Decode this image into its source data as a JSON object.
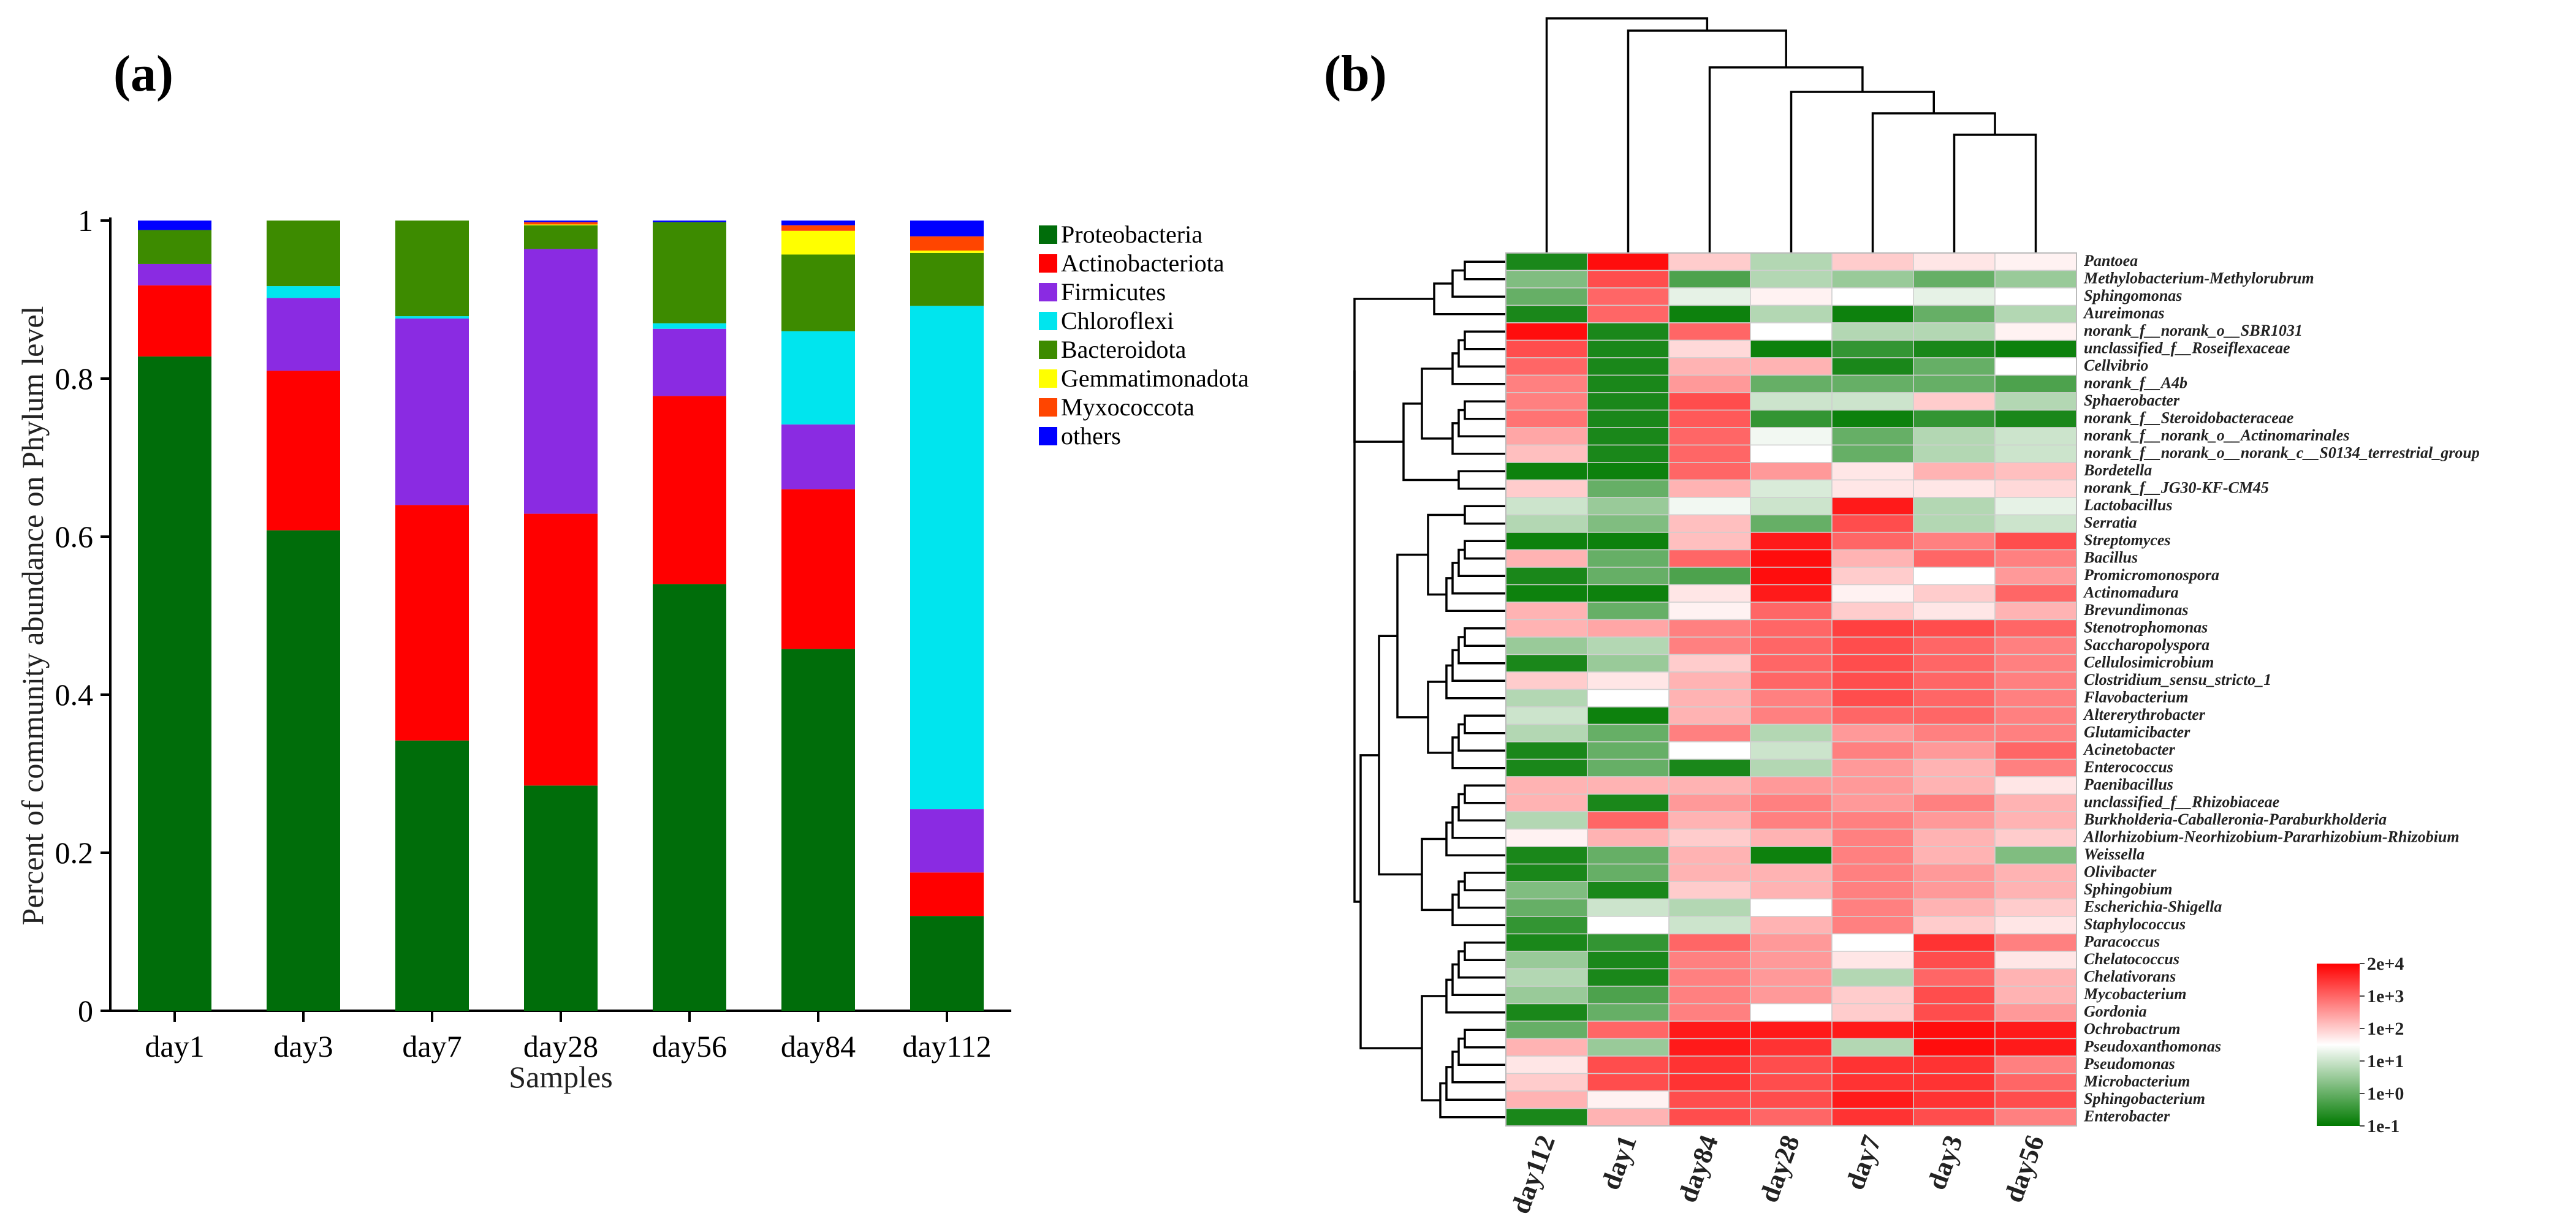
{
  "panel_labels": {
    "a": "(a)",
    "b": "(b)"
  },
  "colors": {
    "Proteobacteria": "#006d0a",
    "Actinobacteriota": "#ff0000",
    "Firmicutes": "#8a2be2",
    "Chloroflexi": "#00e5ee",
    "Bacteroidota": "#3d8b00",
    "Gemmatimonadota": "#ffff00",
    "Myxococcota": "#ff4500",
    "others": "#0000ff",
    "heat_low": "#007a00",
    "heat_mid": "#ffffff",
    "heat_high": "#ff0000"
  },
  "chart_data": [
    {
      "type": "bar",
      "stacked": true,
      "xlabel": "Samples",
      "ylabel": "Percent of community abundance on Phylum level",
      "ylim": [
        0,
        1
      ],
      "yticks": [
        "0",
        "0.2",
        "0.4",
        "0.6",
        "0.8",
        "1"
      ],
      "ytick_values": [
        0,
        0.2,
        0.4,
        0.6,
        0.8,
        1
      ],
      "categories": [
        "day1",
        "day3",
        "day7",
        "day28",
        "day56",
        "day84",
        "day112"
      ],
      "legend_position": "right",
      "series": [
        {
          "name": "Proteobacteria",
          "values": [
            0.828,
            0.608,
            0.342,
            0.285,
            0.54,
            0.458,
            0.12
          ]
        },
        {
          "name": "Actinobacteriota",
          "values": [
            0.09,
            0.202,
            0.298,
            0.344,
            0.238,
            0.202,
            0.055
          ]
        },
        {
          "name": "Firmicutes",
          "values": [
            0.027,
            0.092,
            0.236,
            0.335,
            0.085,
            0.082,
            0.08
          ]
        },
        {
          "name": "Chloroflexi",
          "values": [
            0.0,
            0.015,
            0.003,
            0.0,
            0.007,
            0.118,
            0.637
          ]
        },
        {
          "name": "Bacteroidota",
          "values": [
            0.043,
            0.083,
            0.121,
            0.03,
            0.128,
            0.097,
            0.067
          ]
        },
        {
          "name": "Gemmatimonadota",
          "values": [
            0.0,
            0.0,
            0.0,
            0.001,
            0.0,
            0.03,
            0.003
          ]
        },
        {
          "name": "Myxococcota",
          "values": [
            0.0,
            0.0,
            0.0,
            0.003,
            0.0,
            0.007,
            0.018
          ]
        },
        {
          "name": "others",
          "values": [
            0.012,
            0.0,
            0.0,
            0.002,
            0.002,
            0.006,
            0.02
          ]
        }
      ]
    },
    {
      "type": "heatmap",
      "columns": [
        "day112",
        "day1",
        "day84",
        "day28",
        "day7",
        "day3",
        "day56"
      ],
      "rows": [
        "Pantoea",
        "Methylobacterium-Methylorubrum",
        "Sphingomonas",
        "Aureimonas",
        "norank_f__norank_o__SBR1031",
        "unclassified_f__Roseiflexaceae",
        "Cellvibrio",
        "norank_f__A4b",
        "Sphaerobacter",
        "norank_f__Steroidobacteraceae",
        "norank_f__norank_o__Actinomarinales",
        "norank_f__norank_o__norank_c__S0134_terrestrial_group",
        "Bordetella",
        "norank_f__JG30-KF-CM45",
        "Lactobacillus",
        "Serratia",
        "Streptomyces",
        "Bacillus",
        "Promicromonospora",
        "Actinomadura",
        "Brevundimonas",
        "Stenotrophomonas",
        "Saccharopolyspora",
        "Cellulosimicrobium",
        "Clostridium_sensu_stricto_1",
        "Flavobacterium",
        "Altererythrobacter",
        "Glutamicibacter",
        "Acinetobacter",
        "Enterococcus",
        "Paenibacillus",
        "unclassified_f__Rhizobiaceae",
        "Burkholderia-Caballeronia-Paraburkholderia",
        "Allorhizobium-Neorhizobium-Pararhizobium-Rhizobium",
        "Weissella",
        "Olivibacter",
        "Sphingobium",
        "Escherichia-Shigella",
        "Staphylococcus",
        "Paracoccus",
        "Chelatococcus",
        "Chelativorans",
        "Mycobacterium",
        "Gordonia",
        "Ochrobactrum",
        "Pseudoxanthomonas",
        "Pseudomonas",
        "Microbacterium",
        "Sphingobacterium",
        "Enterobacter"
      ],
      "values": [
        [
          -0.9,
          0.95,
          0.2,
          -0.3,
          0.2,
          0.1,
          0.05
        ],
        [
          -0.5,
          0.7,
          -0.7,
          -0.3,
          -0.4,
          -0.6,
          -0.4
        ],
        [
          -0.6,
          0.6,
          -0.1,
          0.05,
          0.0,
          -0.1,
          0.0
        ],
        [
          -0.9,
          0.6,
          -0.95,
          -0.3,
          -0.95,
          -0.6,
          -0.3
        ],
        [
          0.95,
          -0.9,
          0.6,
          0.0,
          -0.3,
          -0.3,
          0.05
        ],
        [
          0.7,
          -0.9,
          0.15,
          -0.95,
          -0.8,
          -0.9,
          -0.95
        ],
        [
          0.6,
          -0.9,
          0.3,
          0.3,
          -0.9,
          -0.6,
          0.0
        ],
        [
          0.5,
          -0.9,
          0.4,
          -0.6,
          -0.6,
          -0.6,
          -0.7
        ],
        [
          0.5,
          -0.9,
          0.7,
          -0.2,
          -0.2,
          0.2,
          -0.3
        ],
        [
          0.55,
          -0.9,
          0.65,
          -0.8,
          -0.95,
          -0.8,
          -0.9
        ],
        [
          0.35,
          -0.9,
          0.6,
          -0.05,
          -0.6,
          -0.3,
          -0.2
        ],
        [
          0.25,
          -0.9,
          0.6,
          0.0,
          -0.6,
          -0.3,
          -0.2
        ],
        [
          -0.95,
          -0.95,
          0.6,
          0.4,
          0.1,
          0.3,
          0.25
        ],
        [
          0.2,
          -0.6,
          0.3,
          -0.15,
          0.1,
          0.1,
          0.15
        ],
        [
          -0.2,
          -0.4,
          -0.05,
          -0.2,
          0.9,
          -0.3,
          -0.1
        ],
        [
          -0.3,
          -0.5,
          0.25,
          -0.6,
          0.7,
          -0.3,
          -0.2
        ],
        [
          -0.95,
          -0.95,
          0.25,
          0.9,
          0.6,
          0.5,
          0.7
        ],
        [
          0.3,
          -0.6,
          0.6,
          0.95,
          0.3,
          0.6,
          0.5
        ],
        [
          -0.9,
          -0.6,
          -0.7,
          0.95,
          0.2,
          0.0,
          0.4
        ],
        [
          -0.95,
          -0.95,
          0.1,
          0.9,
          0.05,
          0.2,
          0.6
        ],
        [
          0.3,
          -0.6,
          0.05,
          0.6,
          0.2,
          0.1,
          0.3
        ],
        [
          0.3,
          0.35,
          0.5,
          0.6,
          0.75,
          0.7,
          0.6
        ],
        [
          -0.4,
          -0.3,
          0.5,
          0.6,
          0.7,
          0.6,
          0.5
        ],
        [
          -0.9,
          -0.4,
          0.2,
          0.6,
          0.7,
          0.6,
          0.5
        ],
        [
          0.2,
          0.1,
          0.3,
          0.6,
          0.7,
          0.6,
          0.5
        ],
        [
          -0.3,
          0.0,
          0.3,
          0.5,
          0.7,
          0.6,
          0.5
        ],
        [
          -0.2,
          -0.95,
          0.3,
          0.5,
          0.6,
          0.6,
          0.5
        ],
        [
          -0.3,
          -0.6,
          0.5,
          -0.3,
          0.4,
          0.5,
          0.5
        ],
        [
          -0.9,
          -0.6,
          0.0,
          -0.2,
          0.5,
          0.4,
          0.6
        ],
        [
          -0.9,
          -0.6,
          -0.9,
          -0.3,
          0.4,
          0.3,
          0.5
        ],
        [
          0.3,
          0.3,
          0.3,
          0.4,
          0.4,
          0.3,
          0.1
        ],
        [
          0.3,
          -0.9,
          0.4,
          0.5,
          0.4,
          0.5,
          0.3
        ],
        [
          -0.3,
          0.6,
          0.3,
          0.5,
          0.5,
          0.4,
          0.3
        ],
        [
          0.05,
          0.3,
          0.2,
          0.3,
          0.5,
          0.3,
          0.2
        ],
        [
          -0.9,
          -0.6,
          0.3,
          -0.95,
          0.5,
          0.3,
          -0.5
        ],
        [
          -0.9,
          -0.6,
          0.3,
          0.3,
          0.5,
          0.4,
          0.3
        ],
        [
          -0.5,
          -0.9,
          0.2,
          0.3,
          0.5,
          0.4,
          0.3
        ],
        [
          -0.6,
          -0.2,
          -0.3,
          0.0,
          0.5,
          0.3,
          0.2
        ],
        [
          -0.8,
          0.0,
          -0.2,
          0.3,
          0.5,
          0.2,
          0.1
        ],
        [
          -0.9,
          -0.8,
          0.6,
          0.4,
          0.0,
          0.8,
          0.5
        ],
        [
          -0.4,
          -0.9,
          0.5,
          0.4,
          0.1,
          0.7,
          0.1
        ],
        [
          -0.3,
          -0.9,
          0.5,
          0.4,
          -0.3,
          0.6,
          0.3
        ],
        [
          -0.4,
          -0.7,
          0.5,
          0.4,
          0.2,
          0.7,
          0.3
        ],
        [
          -0.9,
          -0.6,
          0.5,
          0.0,
          0.2,
          0.7,
          0.4
        ],
        [
          -0.6,
          0.6,
          0.9,
          0.9,
          0.9,
          0.95,
          0.9
        ],
        [
          0.3,
          -0.4,
          0.9,
          0.8,
          -0.3,
          0.95,
          0.9
        ],
        [
          0.1,
          0.7,
          0.8,
          0.7,
          0.8,
          0.8,
          0.5
        ],
        [
          0.2,
          0.7,
          0.8,
          0.7,
          0.8,
          0.8,
          0.6
        ],
        [
          0.3,
          0.05,
          0.7,
          0.7,
          0.9,
          0.8,
          0.7
        ],
        [
          -0.9,
          0.3,
          0.7,
          0.6,
          0.8,
          0.7,
          0.5
        ]
      ],
      "color_scale_labels": [
        "2e+4",
        "1e+3",
        "1e+2",
        "1e+1",
        "1e+0",
        "1e-1"
      ]
    }
  ]
}
